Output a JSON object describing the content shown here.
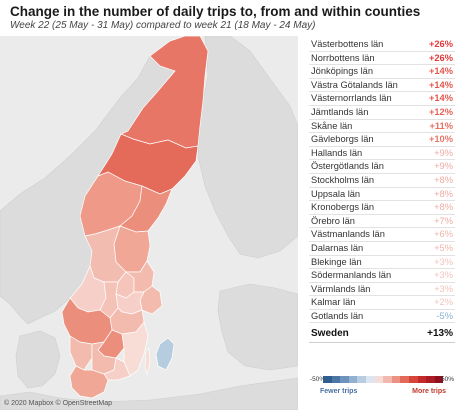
{
  "header": {
    "title": "Change in the number of daily trips to, from and within counties",
    "subtitle": "Week 22 (25 May - 31 May) compared to week 21 (18 May - 24 May)"
  },
  "map": {
    "credit": "© 2020 Mapbox © OpenStreetMap",
    "background": "#ebebeb",
    "region_colors": {
      "norrbotten": "#e87666",
      "vasterbotten": "#e46a5a",
      "jamtland": "#ef9a88",
      "vasternorrland": "#ec8e7c",
      "gavleborg": "#f0a796",
      "dalarna": "#f3bcb0",
      "varmland": "#f6d0c8",
      "vastmanland": "#f5c5bb",
      "uppsala": "#f3bbae",
      "stockholm": "#f3bbae",
      "sodermanland": "#f6d0c8",
      "orebro": "#f4c2b6",
      "ostergotland": "#f3bbae",
      "vastra_gotaland": "#ec8e7c",
      "jonkoping": "#ec8e7c",
      "kalmar": "#f8dcd6",
      "kronoberg": "#f3bbae",
      "blekinge": "#f6d0c8",
      "halland": "#f3bbae",
      "skane": "#f0a796",
      "gotland": "#b6cde0"
    }
  },
  "counties": [
    {
      "name": "Västerbottens län",
      "value": "+26%",
      "color": "#e23a3a",
      "bold": true
    },
    {
      "name": "Norrbottens län",
      "value": "+26%",
      "color": "#e23a3a",
      "bold": true
    },
    {
      "name": "Jönköpings län",
      "value": "+14%",
      "color": "#e4574c",
      "bold": true
    },
    {
      "name": "Västra Götalands län",
      "value": "+14%",
      "color": "#e4574c",
      "bold": true
    },
    {
      "name": "Västernorrlands län",
      "value": "+14%",
      "color": "#e4574c",
      "bold": true
    },
    {
      "name": "Jämtlands län",
      "value": "+12%",
      "color": "#e66458",
      "bold": true
    },
    {
      "name": "Skåne län",
      "value": "+11%",
      "color": "#e86e62",
      "bold": true
    },
    {
      "name": "Gävleborgs län",
      "value": "+10%",
      "color": "#e8766a",
      "bold": true
    },
    {
      "name": "Hallands län",
      "value": "+9%",
      "color": "#f0aaa2",
      "bold": false
    },
    {
      "name": "Östergötlands län",
      "value": "+9%",
      "color": "#f0aaa2",
      "bold": false
    },
    {
      "name": "Stockholms län",
      "value": "+8%",
      "color": "#f0aaa2",
      "bold": false
    },
    {
      "name": "Uppsala län",
      "value": "+8%",
      "color": "#f0aaa2",
      "bold": false
    },
    {
      "name": "Kronobergs län",
      "value": "+8%",
      "color": "#f0aaa2",
      "bold": false
    },
    {
      "name": "Örebro län",
      "value": "+7%",
      "color": "#f0aaa2",
      "bold": false
    },
    {
      "name": "Västmanlands län",
      "value": "+6%",
      "color": "#f0b4ac",
      "bold": false
    },
    {
      "name": "Dalarnas län",
      "value": "+5%",
      "color": "#f0b4ac",
      "bold": false
    },
    {
      "name": "Blekinge län",
      "value": "+3%",
      "color": "#f2c2bb",
      "bold": false
    },
    {
      "name": "Södermanlands län",
      "value": "+3%",
      "color": "#f2c2bb",
      "bold": false
    },
    {
      "name": "Värmlands län",
      "value": "+3%",
      "color": "#f2c2bb",
      "bold": false
    },
    {
      "name": "Kalmar län",
      "value": "+2%",
      "color": "#f2c2bb",
      "bold": false
    },
    {
      "name": "Gotlands län",
      "value": "-5%",
      "color": "#8fb0d3",
      "bold": false
    }
  ],
  "total": {
    "name": "Sweden",
    "value": "+13%"
  },
  "legend": {
    "min_label": "-50%",
    "max_label": "50%",
    "fewer_label": "Fewer trips",
    "more_label": "More trips",
    "colors": [
      "#2f5d8f",
      "#4a76a6",
      "#6d92bb",
      "#93b0d0",
      "#b8cce2",
      "#dde6f0",
      "#f6dcd6",
      "#f2b9ae",
      "#ec9282",
      "#e36a5a",
      "#d64538",
      "#c42a2a",
      "#ab1c24",
      "#8e1021"
    ]
  }
}
